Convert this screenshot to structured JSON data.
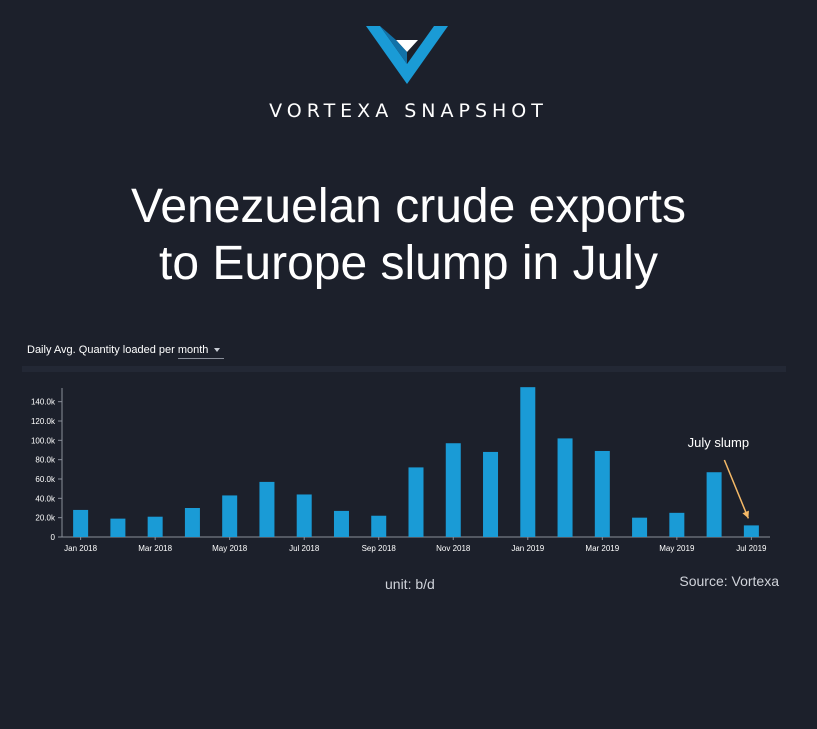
{
  "header": {
    "brand": "VORTEXA SNAPSHOT",
    "logo_icon": "vortexa-v-logo-icon",
    "accent_color": "#1a9bd6"
  },
  "headline": {
    "line1": "Venezuelan crude exports",
    "line2": "to Europe slump in July"
  },
  "selector": {
    "label": "Daily Avg. Quantity loaded per",
    "value": "month"
  },
  "footer": {
    "unit": "unit: b/d",
    "source": "Source: Vortexa"
  },
  "chart_data": {
    "type": "bar",
    "categories": [
      "Jan 2018",
      "Feb 2018",
      "Mar 2018",
      "Apr 2018",
      "May 2018",
      "Jun 2018",
      "Jul 2018",
      "Aug 2018",
      "Sep 2018",
      "Oct 2018",
      "Nov 2018",
      "Dec 2018",
      "Jan 2019",
      "Feb 2019",
      "Mar 2019",
      "Apr 2019",
      "May 2019",
      "Jun 2019",
      "Jul 2019"
    ],
    "tick_labels": [
      "Jan 2018",
      "Mar 2018",
      "May 2018",
      "Jul 2018",
      "Sep 2018",
      "Nov 2018",
      "Jan 2019",
      "Mar 2019",
      "May 2019",
      "Jul 2019"
    ],
    "values": [
      28000,
      19000,
      21000,
      30000,
      43000,
      57000,
      44000,
      27000,
      22000,
      72000,
      97000,
      88000,
      155000,
      102000,
      89000,
      20000,
      25000,
      67000,
      12000
    ],
    "ylim": [
      0,
      150000
    ],
    "yticks": [
      0,
      20000,
      40000,
      60000,
      80000,
      100000,
      120000,
      140000
    ],
    "ytick_labels": [
      "0",
      "20.0k",
      "40.0k",
      "60.0k",
      "80.0k",
      "100.0k",
      "120.0k",
      "140.0k"
    ],
    "bar_color": "#1a9bd6",
    "grid": false,
    "annotation": {
      "text": "July slump",
      "target_category": "Jul 2019",
      "arrow_color": "#f5b967"
    }
  }
}
